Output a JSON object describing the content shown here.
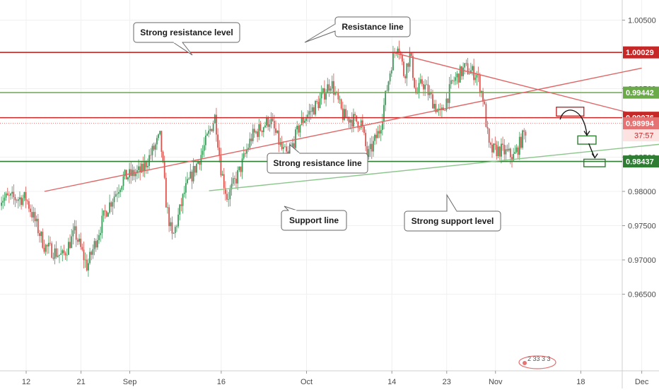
{
  "chart_data": {
    "type": "candlestick",
    "title": "",
    "xlabel": "",
    "ylabel": "",
    "ylim": [
      0.962,
      1.0075
    ],
    "x_ticks": [
      {
        "day": 12,
        "label": "12"
      },
      {
        "day": 21,
        "label": "21"
      },
      {
        "day": 29,
        "label": "Sep"
      },
      {
        "day": 44,
        "label": "16"
      },
      {
        "day": 58,
        "label": "Oct"
      },
      {
        "day": 72,
        "label": "14"
      },
      {
        "day": 81,
        "label": "23"
      },
      {
        "day": 89,
        "label": "Nov"
      },
      {
        "day": 103,
        "label": "18"
      },
      {
        "day": 113,
        "label": "Dec"
      }
    ],
    "y_ticks": [
      {
        "value": 1.005,
        "label": "1.00500"
      },
      {
        "value": 0.995,
        "label": "0.99500"
      },
      {
        "value": 0.985,
        "label": "0.98500"
      },
      {
        "value": 0.98,
        "label": "0.98000"
      },
      {
        "value": 0.975,
        "label": "0.97500"
      },
      {
        "value": 0.97,
        "label": "0.97000"
      },
      {
        "value": 0.965,
        "label": "0.96500"
      }
    ],
    "price_tags": [
      {
        "value": 1.00029,
        "label": "1.00029",
        "color": "#c62828"
      },
      {
        "value": 0.99442,
        "label": "0.99442",
        "color": "#6aaa48"
      },
      {
        "value": 0.99076,
        "label": "0.99076",
        "color": "#c62828"
      },
      {
        "value": 0.98994,
        "label": "0.98994",
        "color": "#e57373"
      },
      {
        "value": 0.98437,
        "label": "0.98437",
        "color": "#2e7d32"
      }
    ],
    "countdown": "37:57",
    "horizontal_levels": [
      {
        "value": 1.00029,
        "color": "#c62828"
      },
      {
        "value": 0.99442,
        "color": "#6aaa48"
      },
      {
        "value": 0.99076,
        "color": "#c62828"
      },
      {
        "value": 0.98437,
        "color": "#2e7d32"
      }
    ],
    "trendlines": [
      {
        "name": "resistance",
        "color": "#e06666",
        "from": [
          60.5,
          1.0002
        ],
        "to": [
          101,
          0.991
        ]
      },
      {
        "name": "strong-resistance",
        "color": "#e06666",
        "from": [
          3,
          0.98
        ],
        "to": [
          101,
          0.998
        ]
      },
      {
        "name": "support",
        "color": "#8bc58b",
        "from": [
          30,
          0.9801
        ],
        "to": [
          114,
          0.9878
        ]
      }
    ],
    "projection_boxes": [
      {
        "color": "#c62828",
        "x": [
          99,
          103.5
        ],
        "y": [
          0.991,
          0.9923
        ]
      },
      {
        "color": "#2e7d32",
        "x": [
          102.5,
          105.5
        ],
        "y": [
          0.9869,
          0.9881
        ]
      },
      {
        "color": "#2e7d32",
        "x": [
          103.5,
          107
        ],
        "y": [
          0.9836,
          0.9847
        ]
      }
    ],
    "candle_seed": 7,
    "last_price": 0.98994,
    "watermark": "2 33 3 3",
    "callouts": [
      {
        "id": "strong-resistance-level",
        "text": "Strong resistance level"
      },
      {
        "id": "resistance-line",
        "text": "Resistance line"
      },
      {
        "id": "strong-resistance-line",
        "text": "Strong resistance line"
      },
      {
        "id": "support-line",
        "text": "Support line"
      },
      {
        "id": "strong-support-level",
        "text": "Strong support level"
      }
    ]
  }
}
